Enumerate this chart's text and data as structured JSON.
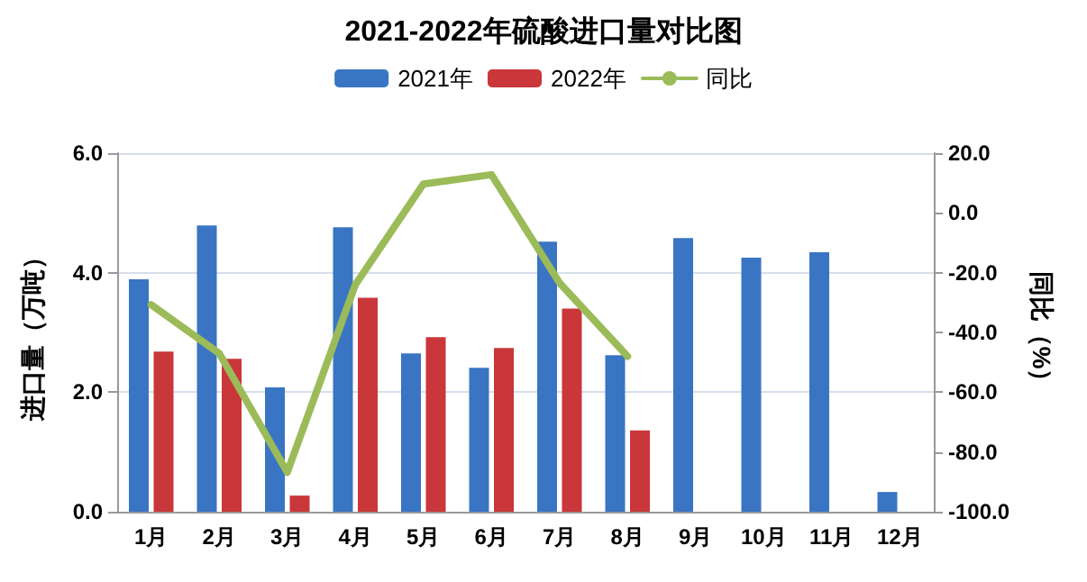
{
  "chart_data": {
    "type": "bar",
    "title": "2021-2022年硫酸进口量对比图",
    "ylabel": "进口量（万吨）",
    "y2label": "同比（%）",
    "categories": [
      "1月",
      "2月",
      "3月",
      "4月",
      "5月",
      "6月",
      "7月",
      "8月",
      "9月",
      "10月",
      "11月",
      "12月"
    ],
    "series": [
      {
        "name": "2021年",
        "color": "#3a75c4",
        "values": [
          3.89,
          4.79,
          2.08,
          4.76,
          2.65,
          2.41,
          4.52,
          2.62,
          4.58,
          4.25,
          4.34,
          0.33
        ]
      },
      {
        "name": "2022年",
        "color": "#c9373a",
        "values": [
          2.68,
          2.56,
          0.27,
          3.58,
          2.92,
          2.74,
          3.4,
          1.36,
          null,
          null,
          null,
          null
        ]
      },
      {
        "name": "同比",
        "type": "line",
        "axis": "y2",
        "color": "#9bbb59",
        "values": [
          -30.7,
          -47,
          -86.8,
          -24,
          9.7,
          12.8,
          -23.4,
          -48,
          null,
          null,
          null,
          null
        ]
      }
    ],
    "ylim": [
      0,
      6
    ],
    "yticks": [
      {
        "value": 0,
        "label": "0.0"
      },
      {
        "value": 2,
        "label": "2.0"
      },
      {
        "value": 4,
        "label": "4.0"
      },
      {
        "value": 6,
        "label": "6.0"
      }
    ],
    "y2lim": [
      -100,
      20
    ],
    "y2ticks": [
      {
        "value": -100,
        "label": "-100.0"
      },
      {
        "value": -80,
        "label": "-80.0"
      },
      {
        "value": -60,
        "label": "-60.0"
      },
      {
        "value": -40,
        "label": "-40.0"
      },
      {
        "value": -20,
        "label": "-20.0"
      },
      {
        "value": 0,
        "label": "0.0"
      },
      {
        "value": 20,
        "label": "20.0"
      }
    ],
    "grid": "y",
    "legend": "top",
    "marker": "none",
    "line_style": "solid"
  }
}
